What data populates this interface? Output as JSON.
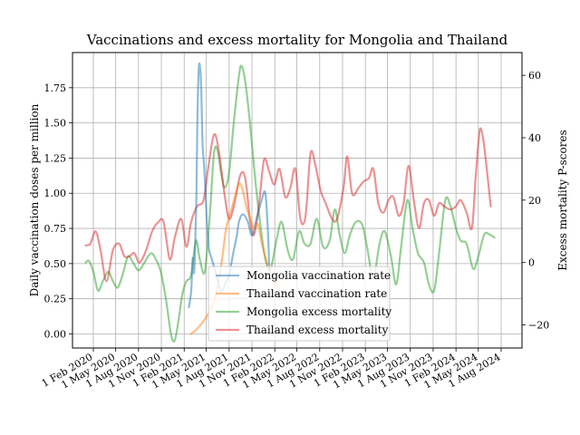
{
  "chart_data": {
    "type": "line",
    "title": "Vaccinations and excess mortality for Mongolia and Thailand",
    "ylabel_left": "Daily vaccination doses per million",
    "ylabel_right": "Excess mortality P-scores",
    "xlabel": "",
    "ylim_left": [
      -0.1,
      2.0
    ],
    "ylim_right": [
      -27.4,
      67.3
    ],
    "xlim": [
      "2019-11-09",
      "2024-10-24"
    ],
    "grid": true,
    "legend_position": "lower center",
    "x_ticks": [
      "1 Feb 2020",
      "1 May 2020",
      "1 Aug 2020",
      "1 Nov 2020",
      "1 Feb 2021",
      "1 May 2021",
      "1 Aug 2021",
      "1 Nov 2021",
      "1 Feb 2022",
      "1 May 2022",
      "1 Aug 2022",
      "1 Nov 2022",
      "1 Feb 2023",
      "1 May 2023",
      "1 Aug 2023",
      "1 Nov 2023",
      "1 Feb 2024",
      "1 May 2024",
      "1 Aug 2024"
    ],
    "y_ticks_left": [
      "0.00",
      "0.25",
      "0.50",
      "0.75",
      "1.00",
      "1.25",
      "1.50",
      "1.75"
    ],
    "y_ticks_right": [
      "−20",
      "0",
      "20",
      "40",
      "60"
    ],
    "series": [
      {
        "name": "Mongolia vaccination rate",
        "axis": "left",
        "color": "#1f77b4",
        "points": [
          [
            "2021-02-20",
            0.19
          ],
          [
            "2021-03-01",
            0.3
          ],
          [
            "2021-03-05",
            0.45
          ],
          [
            "2021-03-08",
            0.54
          ],
          [
            "2021-03-12",
            0.43
          ],
          [
            "2021-03-16",
            0.55
          ],
          [
            "2021-03-22",
            0.95
          ],
          [
            "2021-03-26",
            1.5
          ],
          [
            "2021-04-01",
            1.9
          ],
          [
            "2021-04-08",
            1.85
          ],
          [
            "2021-04-12",
            1.65
          ],
          [
            "2021-04-16",
            1.35
          ],
          [
            "2021-04-22",
            1.2
          ],
          [
            "2021-04-28",
            1.0
          ],
          [
            "2021-05-05",
            0.75
          ],
          [
            "2021-05-12",
            0.6
          ],
          [
            "2021-05-20",
            0.55
          ],
          [
            "2021-06-01",
            0.48
          ],
          [
            "2021-06-10",
            0.42
          ],
          [
            "2021-06-20",
            0.35
          ],
          [
            "2021-07-01",
            0.3
          ],
          [
            "2021-07-15",
            0.35
          ],
          [
            "2021-08-01",
            0.42
          ],
          [
            "2021-08-15",
            0.55
          ],
          [
            "2021-09-01",
            0.7
          ],
          [
            "2021-09-10",
            0.8
          ],
          [
            "2021-09-25",
            0.85
          ],
          [
            "2021-10-15",
            0.8
          ],
          [
            "2021-11-01",
            0.7
          ],
          [
            "2021-11-20",
            0.82
          ],
          [
            "2021-12-10",
            0.95
          ],
          [
            "2021-12-25",
            1.0
          ],
          [
            "2022-01-05",
            0.7
          ],
          [
            "2022-01-10",
            0.45
          ]
        ]
      },
      {
        "name": "Thailand vaccination rate",
        "axis": "left",
        "color": "#ff7f0e",
        "points": [
          [
            "2021-02-28",
            0.0
          ],
          [
            "2021-03-15",
            0.02
          ],
          [
            "2021-04-01",
            0.05
          ],
          [
            "2021-04-15",
            0.08
          ],
          [
            "2021-05-01",
            0.12
          ],
          [
            "2021-05-20",
            0.18
          ],
          [
            "2021-06-05",
            0.25
          ],
          [
            "2021-06-20",
            0.38
          ],
          [
            "2021-07-05",
            0.55
          ],
          [
            "2021-07-20",
            0.75
          ],
          [
            "2021-08-05",
            0.85
          ],
          [
            "2021-08-25",
            0.98
          ],
          [
            "2021-09-10",
            1.07
          ],
          [
            "2021-09-25",
            1.02
          ],
          [
            "2021-10-10",
            0.9
          ],
          [
            "2021-10-25",
            0.82
          ],
          [
            "2021-11-10",
            0.75
          ],
          [
            "2021-11-25",
            0.78
          ],
          [
            "2021-12-10",
            0.65
          ],
          [
            "2021-12-25",
            0.55
          ],
          [
            "2022-01-10",
            0.45
          ],
          [
            "2022-01-25",
            0.42
          ],
          [
            "2022-02-10",
            0.35
          ],
          [
            "2022-02-25",
            0.3
          ],
          [
            "2022-03-10",
            0.27
          ]
        ]
      },
      {
        "name": "Mongolia excess mortality",
        "axis": "right",
        "color": "#2ca02c",
        "points": [
          [
            "2020-01-01",
            0.0
          ],
          [
            "2020-01-15",
            0.5
          ],
          [
            "2020-02-01",
            -3
          ],
          [
            "2020-02-20",
            -9
          ],
          [
            "2020-03-10",
            -6
          ],
          [
            "2020-04-01",
            -3
          ],
          [
            "2020-04-20",
            -6
          ],
          [
            "2020-05-10",
            -8
          ],
          [
            "2020-06-01",
            -3
          ],
          [
            "2020-06-20",
            2
          ],
          [
            "2020-07-10",
            0
          ],
          [
            "2020-08-01",
            -2.5
          ],
          [
            "2020-08-25",
            0
          ],
          [
            "2020-09-20",
            3
          ],
          [
            "2020-10-10",
            1
          ],
          [
            "2020-10-30",
            -3
          ],
          [
            "2020-11-20",
            -12
          ],
          [
            "2020-12-10",
            -23
          ],
          [
            "2020-12-25",
            -25
          ],
          [
            "2021-01-10",
            -18
          ],
          [
            "2021-01-25",
            -10
          ],
          [
            "2021-02-10",
            -6
          ],
          [
            "2021-03-01",
            -4
          ],
          [
            "2021-03-20",
            7
          ],
          [
            "2021-04-05",
            1
          ],
          [
            "2021-04-25",
            -3
          ],
          [
            "2021-05-15",
            15
          ],
          [
            "2021-06-01",
            35
          ],
          [
            "2021-06-15",
            36
          ],
          [
            "2021-07-01",
            28
          ],
          [
            "2021-07-15",
            24
          ],
          [
            "2021-08-01",
            29
          ],
          [
            "2021-08-20",
            45
          ],
          [
            "2021-09-10",
            60
          ],
          [
            "2021-09-20",
            63
          ],
          [
            "2021-10-05",
            58
          ],
          [
            "2021-10-25",
            44
          ],
          [
            "2021-11-15",
            26
          ],
          [
            "2021-12-05",
            12
          ],
          [
            "2021-12-25",
            1
          ],
          [
            "2022-01-15",
            -2
          ],
          [
            "2022-02-10",
            8
          ],
          [
            "2022-03-01",
            13
          ],
          [
            "2022-03-25",
            4
          ],
          [
            "2022-04-15",
            1
          ],
          [
            "2022-05-10",
            10
          ],
          [
            "2022-06-01",
            6
          ],
          [
            "2022-06-25",
            6
          ],
          [
            "2022-07-20",
            14
          ],
          [
            "2022-08-15",
            5
          ],
          [
            "2022-09-10",
            7
          ],
          [
            "2022-10-01",
            17
          ],
          [
            "2022-10-20",
            9
          ],
          [
            "2022-11-10",
            3
          ],
          [
            "2022-12-01",
            9
          ],
          [
            "2022-12-25",
            13
          ],
          [
            "2023-01-20",
            12
          ],
          [
            "2023-02-10",
            4
          ],
          [
            "2023-03-05",
            -5
          ],
          [
            "2023-03-30",
            6
          ],
          [
            "2023-04-20",
            10
          ],
          [
            "2023-05-15",
            2
          ],
          [
            "2023-06-05",
            -7
          ],
          [
            "2023-06-25",
            5
          ],
          [
            "2023-07-20",
            20
          ],
          [
            "2023-08-10",
            11
          ],
          [
            "2023-09-01",
            3
          ],
          [
            "2023-09-25",
            0
          ],
          [
            "2023-10-15",
            -7
          ],
          [
            "2023-11-05",
            -9
          ],
          [
            "2023-11-25",
            3
          ],
          [
            "2023-12-20",
            20
          ],
          [
            "2024-01-10",
            18
          ],
          [
            "2024-02-01",
            11
          ],
          [
            "2024-02-20",
            7
          ],
          [
            "2024-03-15",
            6
          ],
          [
            "2024-04-10",
            -2
          ],
          [
            "2024-05-01",
            2
          ],
          [
            "2024-05-25",
            9
          ],
          [
            "2024-06-15",
            9
          ],
          [
            "2024-07-05",
            8
          ]
        ]
      },
      {
        "name": "Thailand excess mortality",
        "axis": "right",
        "color": "#d62728",
        "points": [
          [
            "2020-01-01",
            5.5
          ],
          [
            "2020-01-20",
            6
          ],
          [
            "2020-02-10",
            10
          ],
          [
            "2020-03-01",
            4
          ],
          [
            "2020-03-25",
            -6
          ],
          [
            "2020-04-20",
            4
          ],
          [
            "2020-05-15",
            6
          ],
          [
            "2020-06-05",
            2
          ],
          [
            "2020-06-25",
            2
          ],
          [
            "2020-07-15",
            3
          ],
          [
            "2020-08-05",
            0
          ],
          [
            "2020-09-01",
            4
          ],
          [
            "2020-09-25",
            10
          ],
          [
            "2020-10-20",
            13
          ],
          [
            "2020-11-10",
            13
          ],
          [
            "2020-12-05",
            1
          ],
          [
            "2020-12-25",
            8
          ],
          [
            "2021-01-20",
            14
          ],
          [
            "2021-02-10",
            5
          ],
          [
            "2021-03-01",
            13
          ],
          [
            "2021-03-25",
            18
          ],
          [
            "2021-04-20",
            20
          ],
          [
            "2021-05-10",
            31
          ],
          [
            "2021-06-01",
            41
          ],
          [
            "2021-06-20",
            36
          ],
          [
            "2021-07-15",
            21
          ],
          [
            "2021-08-01",
            14
          ],
          [
            "2021-08-20",
            18
          ],
          [
            "2021-09-15",
            28
          ],
          [
            "2021-10-05",
            27
          ],
          [
            "2021-10-25",
            13
          ],
          [
            "2021-11-10",
            9
          ],
          [
            "2021-11-30",
            19
          ],
          [
            "2021-12-20",
            33
          ],
          [
            "2022-01-10",
            29
          ],
          [
            "2022-01-30",
            25
          ],
          [
            "2022-02-20",
            30
          ],
          [
            "2022-03-15",
            21
          ],
          [
            "2022-04-05",
            24
          ],
          [
            "2022-04-25",
            30
          ],
          [
            "2022-05-15",
            14
          ],
          [
            "2022-06-05",
            15
          ],
          [
            "2022-06-25",
            35
          ],
          [
            "2022-07-15",
            31
          ],
          [
            "2022-08-05",
            23
          ],
          [
            "2022-08-25",
            19
          ],
          [
            "2022-09-20",
            14
          ],
          [
            "2022-10-10",
            14
          ],
          [
            "2022-11-05",
            24
          ],
          [
            "2022-11-20",
            34
          ],
          [
            "2022-12-10",
            22
          ],
          [
            "2023-01-05",
            24
          ],
          [
            "2023-01-25",
            26
          ],
          [
            "2023-02-15",
            27
          ],
          [
            "2023-03-05",
            30
          ],
          [
            "2023-03-25",
            19
          ],
          [
            "2023-04-15",
            16
          ],
          [
            "2023-05-05",
            20
          ],
          [
            "2023-05-25",
            21
          ],
          [
            "2023-06-15",
            15
          ],
          [
            "2023-07-05",
            19
          ],
          [
            "2023-07-25",
            31
          ],
          [
            "2023-08-15",
            20
          ],
          [
            "2023-09-05",
            11
          ],
          [
            "2023-09-25",
            19
          ],
          [
            "2023-10-15",
            20
          ],
          [
            "2023-11-05",
            15
          ],
          [
            "2023-11-25",
            19
          ],
          [
            "2023-12-15",
            18
          ],
          [
            "2024-01-10",
            17
          ],
          [
            "2024-02-01",
            18
          ],
          [
            "2024-02-20",
            20
          ],
          [
            "2024-03-15",
            16
          ],
          [
            "2024-04-05",
            11
          ],
          [
            "2024-04-20",
            27
          ],
          [
            "2024-05-01",
            38
          ],
          [
            "2024-05-10",
            43
          ],
          [
            "2024-05-25",
            37
          ],
          [
            "2024-06-20",
            18
          ]
        ]
      }
    ]
  }
}
